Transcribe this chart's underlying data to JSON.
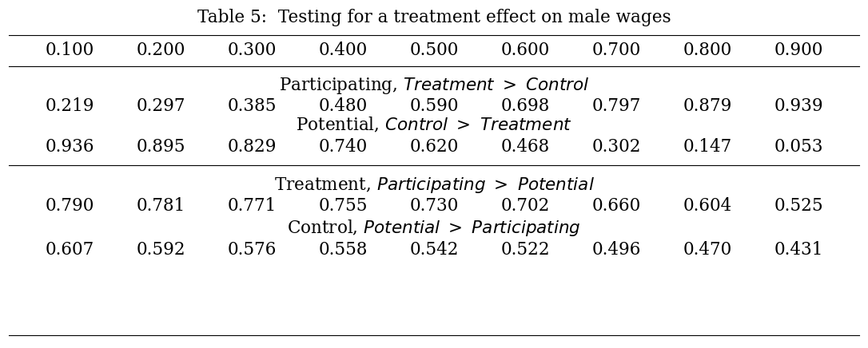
{
  "title": "Table 5:  Testing for a treatment effect on male wages",
  "quantiles": [
    "0.100",
    "0.200",
    "0.300",
    "0.400",
    "0.500",
    "0.600",
    "0.700",
    "0.800",
    "0.900"
  ],
  "section1_header_normal": "Participating, ",
  "section1_header_italic": "Treatment > Control",
  "section1_values": [
    "0.219",
    "0.297",
    "0.385",
    "0.480",
    "0.590",
    "0.698",
    "0.797",
    "0.879",
    "0.939"
  ],
  "section2_header_normal": "Potential, ",
  "section2_header_italic": "Control > Treatment",
  "section2_values": [
    "0.936",
    "0.895",
    "0.829",
    "0.740",
    "0.620",
    "0.468",
    "0.302",
    "0.147",
    "0.053"
  ],
  "section3_header_normal": "Treatment, ",
  "section3_header_italic": "Participating > Potential",
  "section3_values": [
    "0.790",
    "0.781",
    "0.771",
    "0.755",
    "0.730",
    "0.702",
    "0.660",
    "0.604",
    "0.525"
  ],
  "section4_header_normal": "Control, ",
  "section4_header_italic": "Potential > Participating",
  "section4_values": [
    "0.607",
    "0.592",
    "0.576",
    "0.558",
    "0.542",
    "0.522",
    "0.496",
    "0.470",
    "0.431"
  ],
  "bg_color": "white",
  "text_color": "black",
  "fontsize": 15.5,
  "title_fontsize": 15.5
}
